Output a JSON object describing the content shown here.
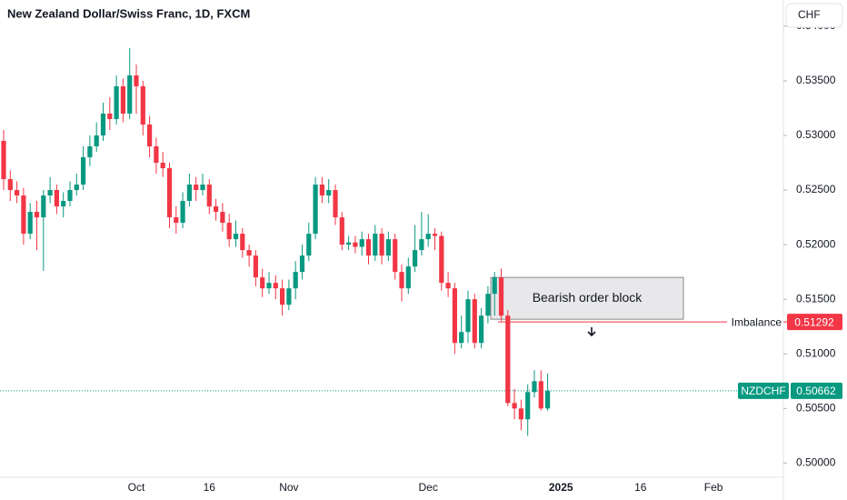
{
  "chart_data": {
    "type": "candlestick",
    "title": "New Zealand Dollar/Swiss Franc, 1D, FXCM",
    "currency_button": "CHF",
    "up_color": "#089981",
    "down_color": "#f23645",
    "grid": false,
    "categories": [
      null,
      null,
      null,
      null,
      null,
      null,
      null,
      null,
      null,
      null,
      null,
      null,
      null,
      null,
      null,
      null,
      null,
      null,
      null,
      null,
      "Oct",
      null,
      null,
      null,
      null,
      null,
      null,
      null,
      null,
      null,
      null,
      "16",
      null,
      null,
      null,
      null,
      null,
      null,
      null,
      null,
      null,
      null,
      null,
      "Nov",
      null,
      null,
      null,
      null,
      null,
      null,
      null,
      null,
      null,
      null,
      null,
      null,
      null,
      null,
      null,
      null,
      null,
      null,
      null,
      null,
      "Dec",
      null,
      null,
      null,
      null,
      null,
      null,
      null,
      null,
      null,
      null,
      null,
      null,
      null,
      null,
      null,
      null,
      null,
      null,
      null,
      "2025",
      null,
      null,
      null,
      null,
      null,
      null,
      null,
      null,
      null,
      null,
      null,
      "16",
      null,
      null,
      null,
      null,
      null,
      null,
      null,
      null,
      null,
      null,
      "Feb",
      null,
      null,
      null,
      null,
      null,
      null,
      null,
      null,
      null,
      null
    ],
    "open": [
      0.5295,
      0.526,
      0.525,
      0.5245,
      0.521,
      0.523,
      0.5225,
      0.5245,
      0.525,
      0.5235,
      0.524,
      0.525,
      0.5255,
      0.528,
      0.529,
      0.53,
      0.532,
      0.5315,
      0.5345,
      0.532,
      0.5355,
      0.5345,
      0.531,
      0.529,
      0.5275,
      0.527,
      0.5225,
      0.522,
      0.524,
      0.5255,
      0.525,
      0.5255,
      0.5235,
      0.523,
      0.522,
      0.5205,
      0.521,
      0.5195,
      0.519,
      0.517,
      0.516,
      0.5165,
      0.516,
      0.5145,
      0.516,
      0.5175,
      0.519,
      0.521,
      0.5255,
      0.5245,
      0.525,
      0.5225,
      0.52,
      0.5202,
      0.5198,
      0.5205,
      0.519,
      0.521,
      0.519,
      0.5205,
      0.5175,
      0.516,
      0.518,
      0.5195,
      0.5205,
      0.521,
      0.5208,
      0.5165,
      0.516,
      0.511,
      0.512,
      0.515,
      0.511,
      0.5135,
      0.5155,
      0.517,
      0.5135,
      0.5055,
      0.505,
      0.504,
      0.5065,
      0.5075,
      0.505,
      null,
      null,
      null,
      null,
      null,
      null,
      null,
      null,
      null,
      null,
      null,
      null,
      null,
      null,
      null,
      null,
      null,
      null,
      null,
      null,
      null,
      null,
      null,
      null,
      null,
      null,
      null,
      null,
      null,
      null,
      null,
      null,
      null,
      null,
      null
    ],
    "high": [
      0.5305,
      0.5268,
      0.5258,
      0.5252,
      0.5238,
      0.524,
      0.525,
      0.5262,
      0.5255,
      0.5248,
      0.5258,
      0.5265,
      0.529,
      0.53,
      0.5312,
      0.533,
      0.5335,
      0.5355,
      0.5352,
      0.538,
      0.5365,
      0.535,
      0.5318,
      0.5298,
      0.5285,
      0.5275,
      0.5235,
      0.5248,
      0.5265,
      0.5262,
      0.5265,
      0.526,
      0.5242,
      0.5238,
      0.5228,
      0.5222,
      0.5215,
      0.52,
      0.5195,
      0.5178,
      0.5175,
      0.5172,
      0.5168,
      0.5168,
      0.5185,
      0.52,
      0.522,
      0.5262,
      0.5262,
      0.526,
      0.5255,
      0.523,
      0.5208,
      0.5208,
      0.5212,
      0.521,
      0.5218,
      0.5215,
      0.5212,
      0.521,
      0.5182,
      0.5188,
      0.5218,
      0.523,
      0.5228,
      0.5215,
      0.5212,
      0.5175,
      0.5165,
      0.5135,
      0.5158,
      0.5155,
      0.5142,
      0.5162,
      0.5175,
      0.5178,
      0.514,
      0.5068,
      0.5058,
      0.5072,
      0.5085,
      0.5085,
      0.5082,
      null,
      null,
      null,
      null,
      null,
      null,
      null,
      null,
      null,
      null,
      null,
      null,
      null,
      null,
      null,
      null,
      null,
      null,
      null,
      null,
      null,
      null,
      null,
      null,
      null,
      null,
      null,
      null,
      null,
      null,
      null,
      null,
      null,
      null,
      null
    ],
    "low": [
      0.525,
      0.524,
      0.5238,
      0.52,
      0.5205,
      0.5195,
      0.5176,
      0.5238,
      0.5228,
      0.5225,
      0.5235,
      0.5245,
      0.525,
      0.5272,
      0.5285,
      0.5295,
      0.5305,
      0.531,
      0.5312,
      0.5315,
      0.532,
      0.53,
      0.528,
      0.5265,
      0.5262,
      0.5215,
      0.521,
      0.5215,
      0.5235,
      0.524,
      0.5245,
      0.5228,
      0.5222,
      0.5212,
      0.5198,
      0.5198,
      0.5188,
      0.518,
      0.5162,
      0.5152,
      0.5155,
      0.515,
      0.5135,
      0.514,
      0.515,
      0.5168,
      0.5185,
      0.5205,
      0.5238,
      0.5238,
      0.5218,
      0.5195,
      0.5195,
      0.5192,
      0.519,
      0.5182,
      0.5185,
      0.5182,
      0.5185,
      0.5168,
      0.5148,
      0.5155,
      0.5175,
      0.519,
      0.5198,
      0.5195,
      0.5158,
      0.5152,
      0.51,
      0.5105,
      0.511,
      0.5105,
      0.5105,
      0.5128,
      0.5135,
      0.513,
      0.5052,
      0.504,
      0.503,
      0.5025,
      0.506,
      0.5048,
      0.5048,
      null,
      null,
      null,
      null,
      null,
      null,
      null,
      null,
      null,
      null,
      null,
      null,
      null,
      null,
      null,
      null,
      null,
      null,
      null,
      null,
      null,
      null,
      null,
      null,
      null,
      null,
      null,
      null,
      null,
      null,
      null,
      null,
      null,
      null,
      null
    ],
    "close": [
      0.526,
      0.525,
      0.5245,
      0.521,
      0.523,
      0.5225,
      0.5245,
      0.525,
      0.5235,
      0.524,
      0.525,
      0.5255,
      0.528,
      0.529,
      0.53,
      0.532,
      0.5315,
      0.5345,
      0.532,
      0.5355,
      0.5345,
      0.531,
      0.529,
      0.5275,
      0.527,
      0.5225,
      0.522,
      0.524,
      0.5255,
      0.525,
      0.5255,
      0.5235,
      0.523,
      0.522,
      0.5205,
      0.521,
      0.5195,
      0.519,
      0.517,
      0.516,
      0.5165,
      0.516,
      0.5145,
      0.516,
      0.5175,
      0.519,
      0.521,
      0.5255,
      0.5245,
      0.525,
      0.5225,
      0.52,
      0.5202,
      0.5198,
      0.5205,
      0.519,
      0.521,
      0.519,
      0.5205,
      0.5175,
      0.516,
      0.518,
      0.5195,
      0.5205,
      0.521,
      0.5208,
      0.5165,
      0.516,
      0.511,
      0.512,
      0.515,
      0.511,
      0.5135,
      0.5155,
      0.517,
      0.5135,
      0.5055,
      0.505,
      0.504,
      0.5065,
      0.5075,
      0.505,
      0.50662,
      null,
      null,
      null,
      null,
      null,
      null,
      null,
      null,
      null,
      null,
      null,
      null,
      null,
      null,
      null,
      null,
      null,
      null,
      null,
      null,
      null,
      null,
      null,
      null,
      null,
      null,
      null,
      null,
      null,
      null,
      null,
      null,
      null,
      null,
      null
    ],
    "ylim": [
      0.4987,
      0.5424
    ],
    "yticks": [
      {
        "value": 0.5,
        "label": "0.50000"
      },
      {
        "value": 0.505,
        "label": "0.50500"
      },
      {
        "value": 0.51,
        "label": "0.51000"
      },
      {
        "value": 0.515,
        "label": "0.51500"
      },
      {
        "value": 0.52,
        "label": "0.52000"
      },
      {
        "value": 0.525,
        "label": "0.52500"
      },
      {
        "value": 0.53,
        "label": "0.53000"
      },
      {
        "value": 0.535,
        "label": "0.53500"
      },
      {
        "value": 0.54,
        "label": "0.54000"
      }
    ],
    "order_block": {
      "text": "Bearish order block",
      "top": 0.517,
      "bottom": 0.51317
    },
    "imbalance": {
      "label": "Imbalance",
      "price": {
        "value": 0.51292,
        "label": "0.51292"
      },
      "color": "#f23645"
    },
    "last_price": {
      "symbol": "NZDCHF",
      "price": {
        "value": 0.50662,
        "label": "0.50662"
      },
      "color": "#089981"
    }
  }
}
